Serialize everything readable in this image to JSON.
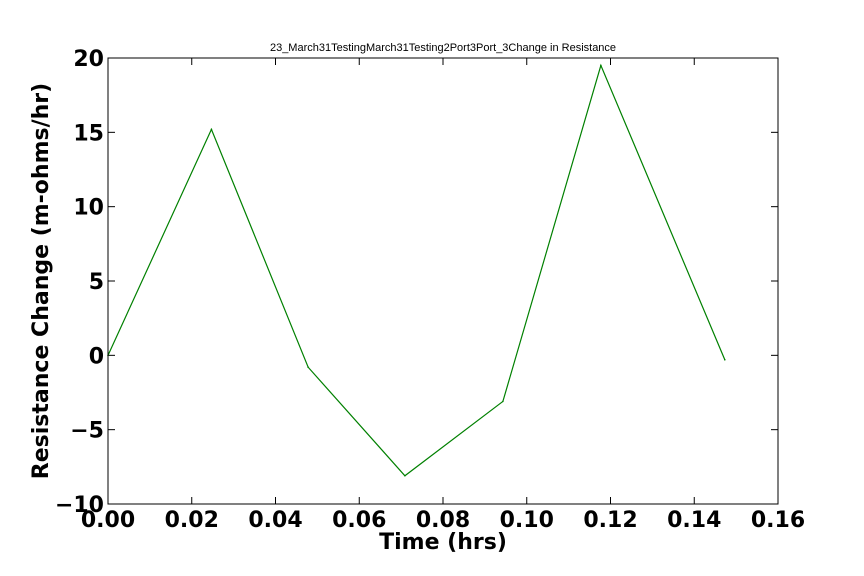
{
  "chart_data": {
    "type": "line",
    "title": "23_March31TestingMarch31Testing2Port3Port_3Change in Resistance",
    "xlabel": "Time (hrs)",
    "ylabel": "Resistance Change (m-ohms/hr)",
    "xlim": [
      0,
      0.16
    ],
    "ylim": [
      -10,
      20
    ],
    "x_ticks": [
      "0.00",
      "0.02",
      "0.04",
      "0.06",
      "0.08",
      "0.10",
      "0.12",
      "0.14",
      "0.16"
    ],
    "y_ticks": [
      "−10",
      "−5",
      "0",
      "5",
      "10",
      "15",
      "20"
    ],
    "grid": false,
    "series": [
      {
        "color": "#008000",
        "x": [
          0.0,
          0.0247,
          0.0478,
          0.0709,
          0.0943,
          0.1177,
          0.1473
        ],
        "y": [
          0.0,
          15.2,
          -0.8,
          -8.1,
          -3.1,
          19.5,
          -0.3
        ]
      }
    ]
  }
}
